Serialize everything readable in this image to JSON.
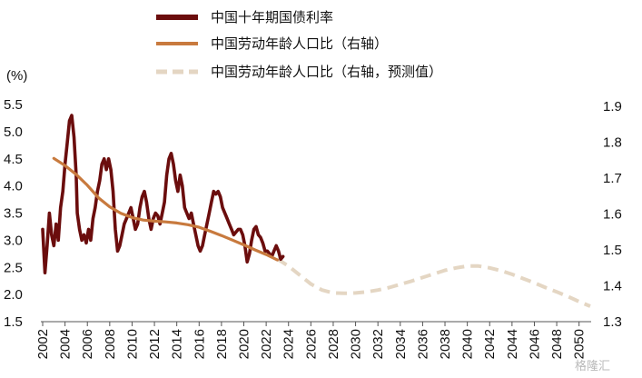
{
  "chart_data": {
    "type": "line",
    "y_unit_label": "(%)",
    "left_axis": {
      "min": 1.5,
      "max": 5.5,
      "ticks": [
        "1.5",
        "2.0",
        "2.5",
        "3.0",
        "3.5",
        "4.0",
        "4.5",
        "5.0",
        "5.5"
      ]
    },
    "right_axis": {
      "min": 1.3,
      "max": 1.9,
      "ticks": [
        "1.3",
        "1.4",
        "1.5",
        "1.6",
        "1.7",
        "1.8",
        "1.9"
      ]
    },
    "x_axis": {
      "min": 2002,
      "max": 2051,
      "ticks": [
        "2002",
        "2004",
        "2006",
        "2008",
        "2010",
        "2012",
        "2014",
        "2016",
        "2018",
        "2020",
        "2022",
        "2024",
        "2026",
        "2028",
        "2030",
        "2032",
        "2034",
        "2036",
        "2038",
        "2040",
        "2042",
        "2044",
        "2046",
        "2048",
        "2050"
      ]
    },
    "grid": false,
    "legend_position": "top",
    "series": [
      {
        "name": "中国十年期国债利率",
        "axis": "left",
        "color": "#6b0d0d",
        "style": "solid-thick",
        "x": [
          2002.0,
          2002.2,
          2002.4,
          2002.6,
          2002.8,
          2003.0,
          2003.2,
          2003.4,
          2003.6,
          2003.8,
          2004.0,
          2004.2,
          2004.4,
          2004.6,
          2004.8,
          2005.0,
          2005.1,
          2005.3,
          2005.5,
          2005.7,
          2005.9,
          2006.1,
          2006.3,
          2006.5,
          2006.7,
          2006.9,
          2007.1,
          2007.3,
          2007.5,
          2007.7,
          2007.9,
          2008.1,
          2008.3,
          2008.5,
          2008.7,
          2008.9,
          2009.1,
          2009.3,
          2009.5,
          2009.7,
          2009.9,
          2010.1,
          2010.3,
          2010.5,
          2010.7,
          2010.9,
          2011.1,
          2011.3,
          2011.5,
          2011.7,
          2011.9,
          2012.1,
          2012.3,
          2012.5,
          2012.7,
          2012.9,
          2013.1,
          2013.3,
          2013.5,
          2013.7,
          2013.9,
          2014.1,
          2014.3,
          2014.5,
          2014.7,
          2014.9,
          2015.1,
          2015.3,
          2015.5,
          2015.7,
          2015.9,
          2016.1,
          2016.3,
          2016.5,
          2016.7,
          2016.9,
          2017.1,
          2017.3,
          2017.5,
          2017.7,
          2017.9,
          2018.1,
          2018.3,
          2018.5,
          2018.7,
          2018.9,
          2019.1,
          2019.3,
          2019.5,
          2019.7,
          2019.9,
          2020.1,
          2020.3,
          2020.5,
          2020.7,
          2020.9,
          2021.1,
          2021.3,
          2021.5,
          2021.7,
          2021.9,
          2022.1,
          2022.3,
          2022.5,
          2022.7,
          2022.9,
          2023.1,
          2023.3,
          2023.5
        ],
        "values": [
          3.2,
          2.4,
          2.9,
          3.5,
          3.1,
          2.9,
          3.3,
          3.0,
          3.6,
          3.9,
          4.4,
          4.8,
          5.2,
          5.3,
          4.9,
          4.2,
          3.5,
          3.2,
          3.0,
          3.1,
          2.95,
          3.2,
          3.0,
          3.4,
          3.6,
          3.9,
          4.1,
          4.4,
          4.5,
          4.3,
          4.5,
          4.3,
          3.9,
          3.2,
          2.8,
          2.9,
          3.1,
          3.3,
          3.4,
          3.5,
          3.6,
          3.4,
          3.2,
          3.3,
          3.6,
          3.8,
          3.9,
          3.7,
          3.4,
          3.2,
          3.4,
          3.5,
          3.45,
          3.3,
          3.5,
          3.7,
          4.2,
          4.5,
          4.6,
          4.4,
          4.1,
          3.9,
          4.2,
          4.0,
          3.6,
          3.5,
          3.4,
          3.5,
          3.3,
          3.1,
          2.9,
          2.8,
          2.9,
          3.1,
          3.3,
          3.5,
          3.7,
          3.9,
          3.85,
          3.9,
          3.8,
          3.6,
          3.5,
          3.4,
          3.3,
          3.2,
          3.1,
          3.15,
          3.2,
          3.2,
          3.1,
          2.9,
          2.6,
          2.75,
          3.0,
          3.2,
          3.25,
          3.1,
          3.05,
          2.95,
          2.8,
          2.8,
          2.75,
          2.7,
          2.8,
          2.9,
          2.8,
          2.65,
          2.7
        ]
      },
      {
        "name": "中国劳动年龄人口比（右轴）",
        "axis": "right",
        "color": "#c87a3e",
        "style": "solid",
        "x": [
          2003,
          2004,
          2005,
          2006,
          2007,
          2008,
          2009,
          2010,
          2011,
          2012,
          2013,
          2014,
          2015,
          2016,
          2017,
          2018,
          2019,
          2020,
          2021,
          2022,
          2023
        ],
        "values": [
          1.755,
          1.735,
          1.71,
          1.68,
          1.645,
          1.62,
          1.602,
          1.59,
          1.583,
          1.58,
          1.578,
          1.575,
          1.57,
          1.563,
          1.552,
          1.54,
          1.527,
          1.514,
          1.5,
          1.487,
          1.472
        ]
      },
      {
        "name": "中国劳动年龄人口比（右轴，预测值）",
        "axis": "right",
        "color": "#e4d6c3",
        "style": "dashed",
        "x": [
          2023,
          2024,
          2025,
          2026,
          2027,
          2028,
          2029,
          2030,
          2031,
          2032,
          2033,
          2034,
          2035,
          2036,
          2037,
          2038,
          2039,
          2040,
          2041,
          2042,
          2043,
          2044,
          2045,
          2046,
          2047,
          2048,
          2049,
          2050,
          2051
        ],
        "values": [
          1.475,
          1.455,
          1.43,
          1.405,
          1.388,
          1.38,
          1.379,
          1.38,
          1.383,
          1.388,
          1.395,
          1.404,
          1.413,
          1.423,
          1.433,
          1.443,
          1.45,
          1.455,
          1.455,
          1.45,
          1.442,
          1.432,
          1.42,
          1.408,
          1.395,
          1.383,
          1.37,
          1.356,
          1.343
        ]
      }
    ]
  },
  "watermark": "格隆汇"
}
